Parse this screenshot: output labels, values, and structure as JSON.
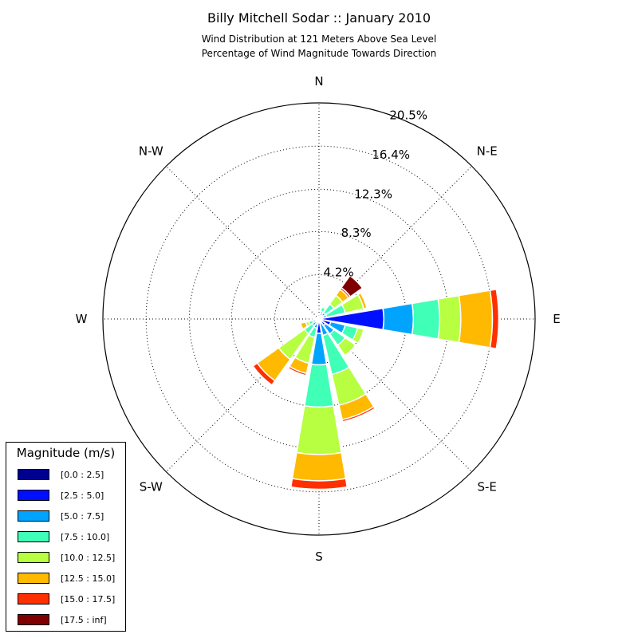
{
  "chart_data": {
    "type": "windrose",
    "title": "Billy Mitchell Sodar :: January 2010",
    "subtitle_lines": [
      "Wind Distribution at 121 Meters Above Sea Level",
      "Percentage of Wind Magnitude Towards Direction"
    ],
    "compass_labels": [
      "N",
      "N-E",
      "E",
      "S-E",
      "S",
      "S-W",
      "W",
      "N-W"
    ],
    "radial_tick_labels": [
      "4.2%",
      "8.3%",
      "12.3%",
      "16.4%",
      "20.5%"
    ],
    "radial_ticks": [
      4.2,
      8.3,
      12.3,
      16.4,
      20.5
    ],
    "r_max": 20.5,
    "grid": true,
    "legend": {
      "title": "Magnitude (m/s)",
      "placement": "bottom-left",
      "entries": [
        "[0.0 : 2.5]",
        "[2.5 : 5.0]",
        "[5.0 : 7.5]",
        "[7.5 : 10.0]",
        "[10.0 : 12.5]",
        "[12.5 : 15.0]",
        "[15.0 : 17.5]",
        "[17.5 : inf]"
      ],
      "colors": [
        "#00008f",
        "#0010ff",
        "#00a4ff",
        "#40ffb7",
        "#b7ff40",
        "#ffb900",
        "#ff3000",
        "#800000"
      ]
    },
    "direction_angles_deg": [
      0,
      22.5,
      45,
      67.5,
      90,
      112.5,
      135,
      157.5,
      180,
      202.5,
      225,
      247.5,
      270,
      292.5,
      315,
      337.5
    ],
    "series": [
      {
        "name": "[0.0 : 2.5]",
        "values": [
          0.1,
          0.15,
          0.1,
          0.15,
          0.15,
          0.15,
          0.15,
          0.1,
          0.15,
          0.1,
          0.1,
          0.1,
          0.05,
          0.05,
          0.05,
          0.05
        ]
      },
      {
        "name": "[2.5 : 5.0]",
        "values": [
          0.2,
          0.4,
          0.35,
          0.3,
          6.0,
          1.0,
          0.6,
          0.3,
          1.2,
          0.4,
          0.3,
          0.2,
          0.05,
          0.05,
          0.05,
          0.1
        ]
      },
      {
        "name": "[5.0 : 7.5]",
        "values": [
          0,
          0.2,
          0.3,
          0.3,
          2.8,
          1.4,
          1.0,
          1.2,
          3.0,
          0.4,
          0.4,
          0.3,
          0,
          0,
          0,
          0
        ]
      },
      {
        "name": "[7.5 : 10.0]",
        "values": [
          0,
          0.4,
          1.0,
          1.8,
          2.5,
          1.2,
          1.3,
          3.8,
          4.0,
          0.9,
          0.9,
          0.4,
          0.2,
          0,
          0,
          0
        ]
      },
      {
        "name": "[10.0 : 12.5]",
        "values": [
          0,
          0,
          1.0,
          1.8,
          2.0,
          0.6,
          1.2,
          3.0,
          4.5,
          2.5,
          3.0,
          0.3,
          0.1,
          0,
          0,
          0
        ]
      },
      {
        "name": "[12.5 : 15.0]",
        "values": [
          0,
          0,
          0.7,
          0.3,
          3.0,
          0,
          0,
          1.4,
          2.5,
          1.0,
          2.5,
          0.5,
          0.1,
          0,
          0,
          0
        ]
      },
      {
        "name": "[15.0 : 17.5]",
        "values": [
          0,
          0,
          0.2,
          0,
          0.6,
          0,
          0,
          0.2,
          0.8,
          0.2,
          0.5,
          0.1,
          0.1,
          0,
          0,
          0
        ]
      },
      {
        "name": "[17.5 : inf]",
        "values": [
          0,
          0,
          1.4,
          0,
          0,
          0,
          0,
          0,
          0,
          0,
          0,
          0,
          0,
          0,
          0,
          0
        ]
      }
    ]
  }
}
